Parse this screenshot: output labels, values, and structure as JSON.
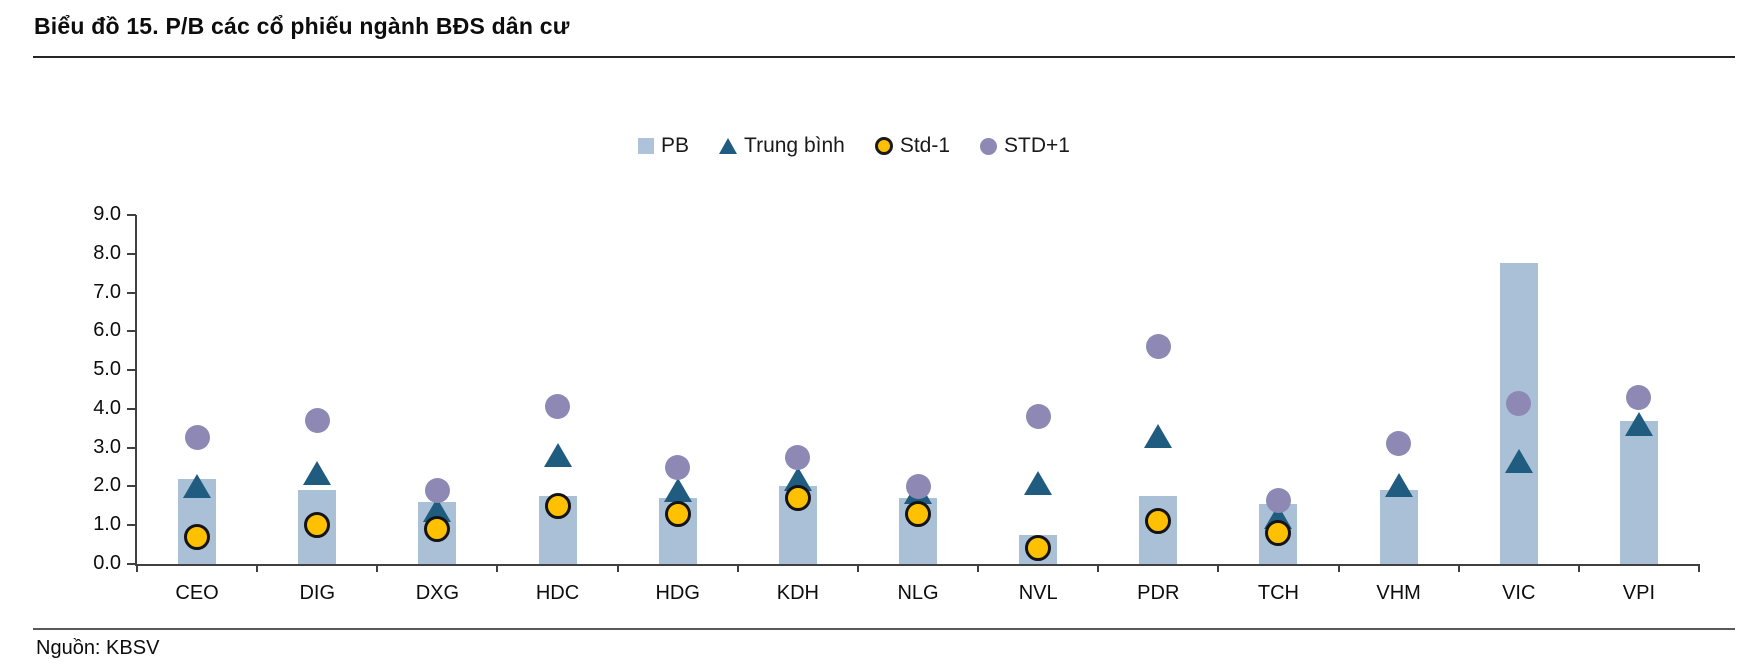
{
  "title": "Biểu đồ 15. P/B các cổ phiếu ngành BĐS dân cư",
  "source": "Nguồn: KBSV",
  "colors": {
    "bar": "#a9c0d6",
    "mean_triangle": "#1f5c80",
    "std_minus1": "#ffc000",
    "std_minus1_stroke": "#141414",
    "std_plus1": "#8d89b4",
    "axis": "#404040"
  },
  "legend": [
    {
      "label": "PB",
      "marker": "square"
    },
    {
      "label": "Trung bình",
      "marker": "triangle"
    },
    {
      "label": "Std-1",
      "marker": "circle-yellow"
    },
    {
      "label": "STD+1",
      "marker": "circle-purple"
    }
  ],
  "chart_data": {
    "type": "bar",
    "subtype": "bar-with-scatter-overlays",
    "title": "Biểu đồ 15. P/B các cổ phiếu ngành BĐS dân cư",
    "categories": [
      "CEO",
      "DIG",
      "DXG",
      "HDC",
      "HDG",
      "KDH",
      "NLG",
      "NVL",
      "PDR",
      "TCH",
      "VHM",
      "VIC",
      "VPI"
    ],
    "series": [
      {
        "name": "PB",
        "type": "bar",
        "values": [
          2.2,
          1.9,
          1.6,
          1.75,
          1.7,
          2.0,
          1.7,
          0.75,
          1.75,
          1.55,
          1.9,
          7.75,
          3.7
        ]
      },
      {
        "name": "Trung bình",
        "type": "scatter-triangle",
        "values": [
          2.0,
          2.35,
          1.4,
          2.8,
          1.9,
          2.2,
          1.85,
          2.1,
          3.3,
          1.2,
          2.05,
          2.65,
          3.6
        ]
      },
      {
        "name": "Std-1",
        "type": "scatter-circle",
        "values": [
          0.7,
          1.0,
          0.9,
          1.5,
          1.3,
          1.7,
          1.3,
          0.4,
          1.1,
          0.8,
          null,
          null,
          null
        ]
      },
      {
        "name": "STD+1",
        "type": "scatter-circle",
        "values": [
          3.25,
          3.7,
          1.9,
          4.05,
          2.5,
          2.75,
          2.0,
          3.8,
          5.6,
          1.65,
          3.1,
          4.15,
          4.3
        ]
      }
    ],
    "xlabel": "",
    "ylabel": "",
    "ylim": [
      0,
      9
    ],
    "ytick_step": 1,
    "ytick_format": "0.0",
    "grid": false,
    "legend_position": "top-center"
  }
}
